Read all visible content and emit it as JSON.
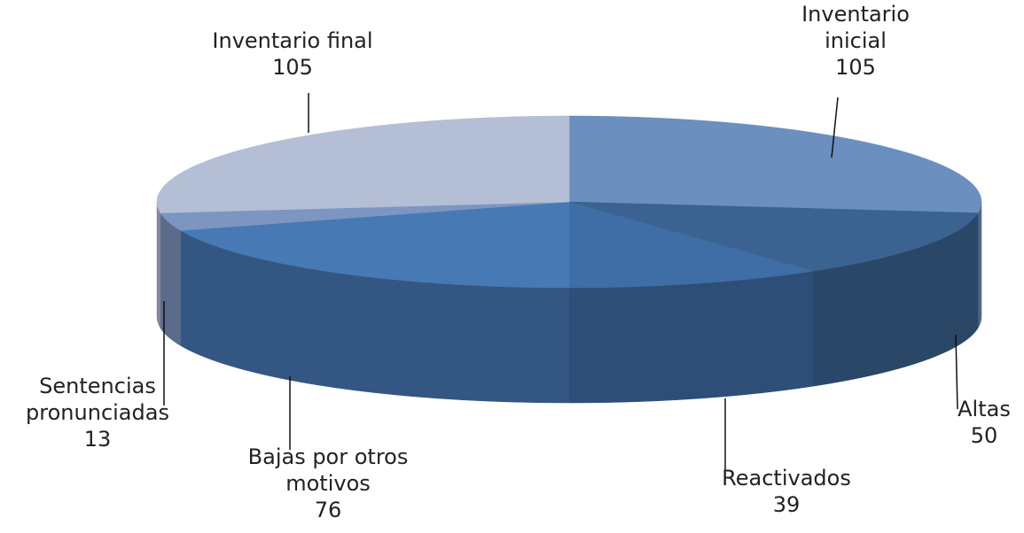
{
  "chart_data": {
    "type": "pie3d",
    "categories": [
      "Inventario inicial",
      "Altas",
      "Reactivados",
      "Bajas por otros motivos",
      "Sentencias pronunciadas",
      "Inventario final"
    ],
    "values": [
      105,
      50,
      39,
      76,
      13,
      105
    ],
    "colors": [
      "#6b8fbe",
      "#3b6391",
      "#3f6da5",
      "#4779b5",
      "#7d95c1",
      "#b4bed4"
    ]
  }
}
